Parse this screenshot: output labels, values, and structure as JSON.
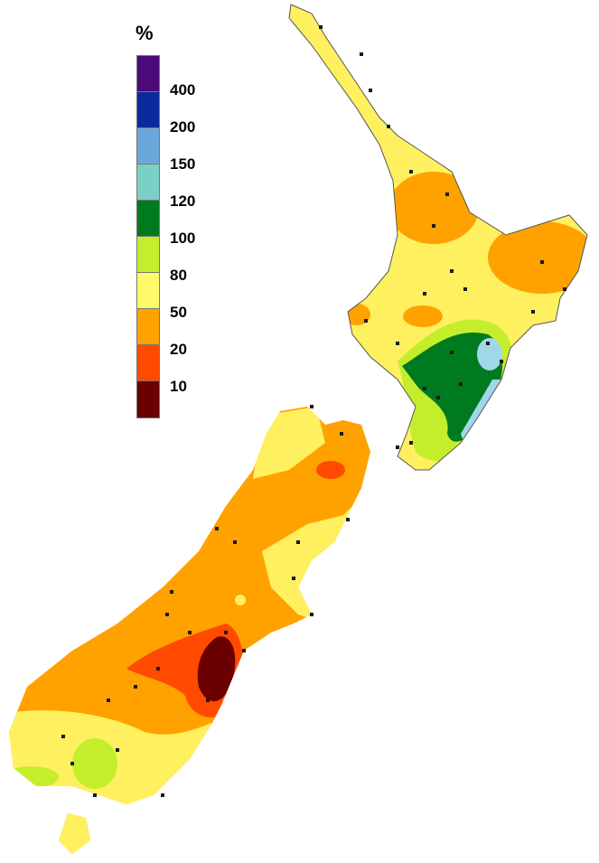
{
  "legend": {
    "title": "%",
    "colors": [
      "#4b0a7a",
      "#0a2a9e",
      "#6aa8dc",
      "#7ad0c4",
      "#007a1e",
      "#c4ee2c",
      "#fffa6c",
      "#ffa200",
      "#ff4a00",
      "#6a0000"
    ],
    "labels": [
      "400",
      "200",
      "150",
      "120",
      "100",
      "80",
      "50",
      "20",
      "10"
    ]
  },
  "map": {
    "colors": {
      "orange": "#ffa200",
      "yellow": "#fff060",
      "lime": "#c4ee2c",
      "green": "#007a1e",
      "teal": "#7ad0c4",
      "lightblue": "#a0d8e8",
      "red": "#ff4a00",
      "maroon": "#6a0000",
      "station": "#1a1a1a",
      "coast": "#555555"
    }
  }
}
